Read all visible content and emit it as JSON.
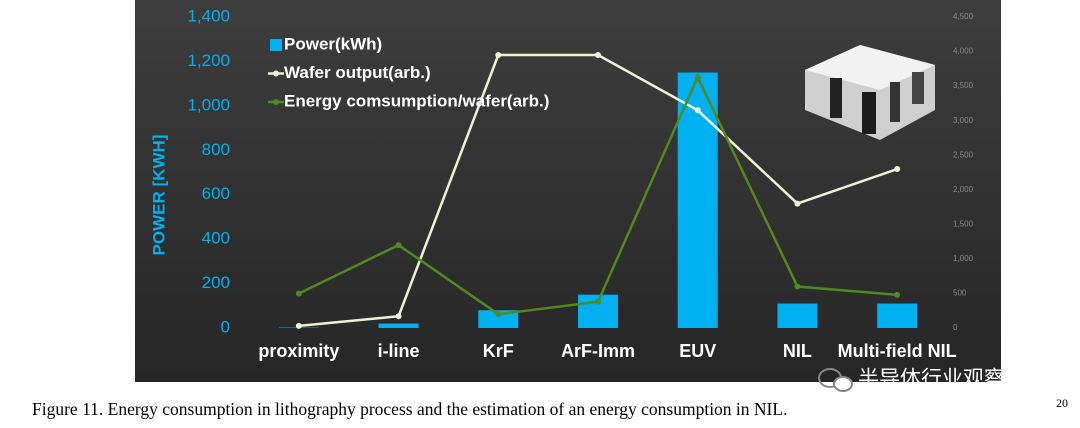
{
  "chart_data": {
    "type": "bar",
    "categories": [
      "proximity",
      "i-line",
      "KrF",
      "ArF-Imm",
      "EUV",
      "NIL",
      "Multi-field NIL"
    ],
    "y_label": "POWER [KWH]",
    "ylim": [
      0,
      1400
    ],
    "yticks": [
      0,
      200,
      400,
      600,
      800,
      {
        "value": 1000,
        "label": "1,000"
      },
      {
        "value": 1200,
        "label": "1,200"
      },
      {
        "value": 1400,
        "label": "1,400"
      }
    ],
    "y2lim": [
      0,
      4500
    ],
    "y2ticks": [
      0,
      500,
      {
        "value": 1000,
        "label": "1,000"
      },
      {
        "value": 1500,
        "label": "1,500"
      },
      {
        "value": 2000,
        "label": "2,000"
      },
      {
        "value": 2500,
        "label": "2,500"
      },
      {
        "value": 3000,
        "label": "3,000"
      },
      {
        "value": 3500,
        "label": "3,500"
      },
      {
        "value": 4000,
        "label": "4,000"
      },
      {
        "value": 4500,
        "label": "4,500"
      }
    ],
    "legend": "top-left",
    "series": [
      {
        "name": "Power(kWh)",
        "type": "bar",
        "color": "#00b0f0",
        "values": [
          2,
          20,
          80,
          150,
          1150,
          110,
          110
        ]
      },
      {
        "name": "Wafer output(arb.)",
        "type": "line",
        "axis": "y2",
        "color": "#eef2d2",
        "values": [
          30,
          170,
          3950,
          3950,
          3150,
          1800,
          2300
        ]
      },
      {
        "name": "Energy comsumption/wafer(arb.)",
        "type": "line",
        "axis": "y2",
        "color": "#4f8a1e",
        "values": [
          500,
          1200,
          200,
          380,
          3630,
          600,
          480
        ]
      }
    ]
  },
  "caption": "Figure 11.  Energy consumption in lithography process and the estimation of an energy consumption in NIL.",
  "footnote": "20",
  "watermark": "半导体行业观察"
}
